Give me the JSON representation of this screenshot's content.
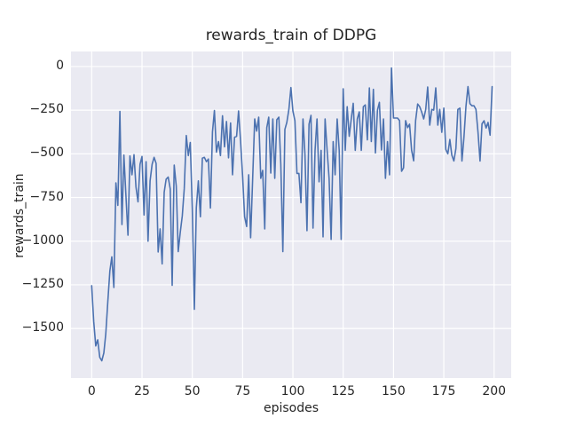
{
  "figure": {
    "title": "rewards_train of DDPG",
    "xlabel": "episodes",
    "ylabel": "rewards_train"
  },
  "chart_data": {
    "type": "line",
    "title": "rewards_train of DDPG",
    "xlabel": "episodes",
    "ylabel": "rewards_train",
    "grid": true,
    "legend": "none",
    "background_color": "#eaeaf2",
    "grid_color": "#ffffff",
    "text_color": "#262626",
    "line_color": "#4c72b0",
    "xticks": [
      0,
      25,
      50,
      75,
      100,
      125,
      150,
      175,
      200
    ],
    "yticks": [
      0,
      -250,
      -500,
      -750,
      -1000,
      -1250,
      -1500
    ],
    "xlim": [
      -10.3,
      208.5
    ],
    "ylim": [
      -1784,
      86
    ],
    "x_start": 0,
    "x_step": 1,
    "series": [
      {
        "name": "rewards_train",
        "color": "#4c72b0",
        "values": [
          -1255,
          -1460,
          -1600,
          -1565,
          -1665,
          -1685,
          -1640,
          -1530,
          -1345,
          -1170,
          -1090,
          -1265,
          -666,
          -795,
          -257,
          -905,
          -507,
          -740,
          -966,
          -512,
          -620,
          -505,
          -690,
          -775,
          -560,
          -515,
          -850,
          -545,
          -1000,
          -655,
          -560,
          -520,
          -555,
          -1062,
          -930,
          -1130,
          -720,
          -645,
          -633,
          -700,
          -1253,
          -565,
          -685,
          -1060,
          -950,
          -855,
          -700,
          -395,
          -510,
          -435,
          -820,
          -1390,
          -810,
          -655,
          -860,
          -525,
          -520,
          -545,
          -530,
          -810,
          -375,
          -252,
          -490,
          -430,
          -510,
          -282,
          -460,
          -315,
          -523,
          -323,
          -620,
          -405,
          -400,
          -255,
          -430,
          -630,
          -860,
          -916,
          -620,
          -980,
          -640,
          -300,
          -370,
          -290,
          -640,
          -595,
          -930,
          -350,
          -290,
          -610,
          -300,
          -640,
          -305,
          -290,
          -560,
          -1060,
          -360,
          -320,
          -246,
          -121,
          -254,
          -310,
          -612,
          -612,
          -780,
          -300,
          -500,
          -940,
          -330,
          -280,
          -925,
          -480,
          -300,
          -660,
          -480,
          -975,
          -300,
          -480,
          -640,
          -990,
          -430,
          -620,
          -300,
          -480,
          -990,
          -128,
          -480,
          -230,
          -400,
          -300,
          -211,
          -480,
          -300,
          -260,
          -480,
          -230,
          -220,
          -420,
          -123,
          -430,
          -131,
          -495,
          -250,
          -205,
          -478,
          -300,
          -640,
          -430,
          -620,
          -8,
          -295,
          -295,
          -295,
          -310,
          -600,
          -580,
          -310,
          -350,
          -330,
          -480,
          -540,
          -310,
          -215,
          -230,
          -260,
          -300,
          -246,
          -118,
          -336,
          -246,
          -250,
          -123,
          -336,
          -246,
          -377,
          -238,
          -475,
          -500,
          -418,
          -508,
          -541,
          -470,
          -246,
          -238,
          -541,
          -410,
          -230,
          -115,
          -213,
          -225,
          -225,
          -246,
          -377,
          -541,
          -328,
          -311,
          -352,
          -320,
          -393,
          -115
        ]
      }
    ]
  }
}
